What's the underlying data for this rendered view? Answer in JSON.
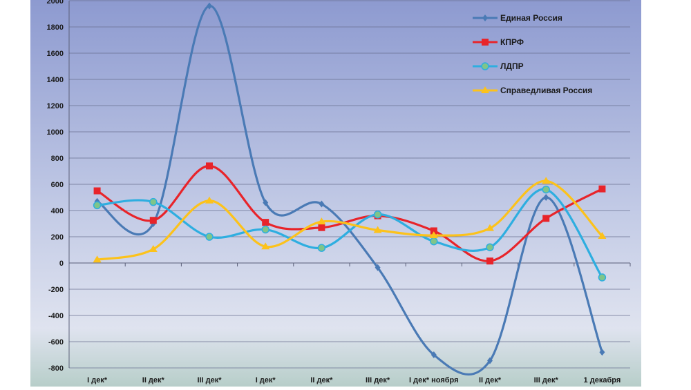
{
  "chart_data": {
    "type": "line",
    "title": "",
    "xlabel": "",
    "ylabel": "",
    "categories": [
      "I дек*",
      "II дек*",
      "III дек*",
      "I дек*",
      "II дек*",
      "III дек*",
      "I дек* ноября",
      "II дек*",
      "III дек*",
      "1 декабря"
    ],
    "ylim": [
      -800,
      2000
    ],
    "yticks": [
      -800,
      -600,
      -400,
      -200,
      0,
      200,
      400,
      600,
      800,
      1000,
      1200,
      1400,
      1600,
      1800,
      2000
    ],
    "grid": true,
    "legend_position": "top-right",
    "series": [
      {
        "name": "Единая Россия",
        "color": "#4a7ab5",
        "marker": "diamond",
        "values": [
          470,
          300,
          1960,
          460,
          450,
          -35,
          -700,
          -745,
          500,
          -680
        ]
      },
      {
        "name": "КПРФ",
        "color": "#e8242a",
        "marker": "square",
        "values": [
          550,
          325,
          740,
          310,
          270,
          360,
          245,
          15,
          340,
          565
        ]
      },
      {
        "name": "ЛДПР",
        "color": "#2eaee0",
        "marker": "circle",
        "values": [
          440,
          465,
          200,
          255,
          115,
          370,
          165,
          120,
          560,
          -110
        ]
      },
      {
        "name": "Справедливая Россия",
        "color": "#fcc21b",
        "marker": "triangle",
        "values": [
          25,
          105,
          475,
          125,
          315,
          250,
          210,
          265,
          625,
          205
        ]
      }
    ]
  }
}
